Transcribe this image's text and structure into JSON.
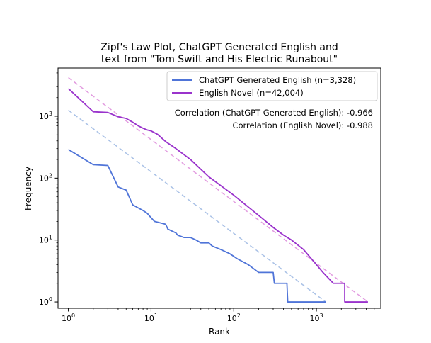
{
  "chart_data": {
    "type": "line",
    "title_lines": [
      "Zipf's Law Plot, ChatGPT Generated English and",
      "text from \"Tom Swift and His Electric Runabout\""
    ],
    "xlabel": "Rank",
    "ylabel": "Frequency",
    "xscale": "log",
    "yscale": "log",
    "xlim": [
      0.75,
      6000
    ],
    "ylim": [
      0.79,
      6000
    ],
    "xticks": [
      {
        "value": 1,
        "base": "10",
        "exp": "0"
      },
      {
        "value": 10,
        "base": "10",
        "exp": "1"
      },
      {
        "value": 100,
        "base": "10",
        "exp": "2"
      },
      {
        "value": 1000,
        "base": "10",
        "exp": "3"
      }
    ],
    "yticks": [
      {
        "value": 1,
        "base": "10",
        "exp": "0"
      },
      {
        "value": 10,
        "base": "10",
        "exp": "1"
      },
      {
        "value": 100,
        "base": "10",
        "exp": "2"
      },
      {
        "value": 1000,
        "base": "10",
        "exp": "3"
      }
    ],
    "grid": false,
    "legend_position": "top-right",
    "series": [
      {
        "name": "ChatGPT Generated English (n=3,328)",
        "color": "#4f74d8",
        "points": [
          [
            1,
            290
          ],
          [
            2,
            165
          ],
          [
            3,
            160
          ],
          [
            4,
            72
          ],
          [
            5,
            64
          ],
          [
            6,
            37
          ],
          [
            7,
            33
          ],
          [
            8,
            30
          ],
          [
            9,
            27
          ],
          [
            10,
            23
          ],
          [
            11,
            20
          ],
          [
            15,
            18
          ],
          [
            16,
            15
          ],
          [
            20,
            13
          ],
          [
            21,
            12
          ],
          [
            25,
            11
          ],
          [
            30,
            11
          ],
          [
            35,
            10
          ],
          [
            40,
            9
          ],
          [
            50,
            9
          ],
          [
            55,
            8
          ],
          [
            70,
            7
          ],
          [
            90,
            6
          ],
          [
            110,
            5
          ],
          [
            150,
            4
          ],
          [
            200,
            3
          ],
          [
            300,
            3
          ],
          [
            310,
            2
          ],
          [
            440,
            2
          ],
          [
            450,
            1
          ],
          [
            1300,
            1
          ]
        ]
      },
      {
        "name": "English Novel (n=42,004)",
        "color": "#9a33cc",
        "points": [
          [
            1,
            2800
          ],
          [
            2,
            1180
          ],
          [
            3,
            1150
          ],
          [
            4,
            980
          ],
          [
            5,
            920
          ],
          [
            6,
            800
          ],
          [
            7,
            700
          ],
          [
            8,
            640
          ],
          [
            9,
            600
          ],
          [
            10,
            580
          ],
          [
            12,
            510
          ],
          [
            15,
            390
          ],
          [
            20,
            300
          ],
          [
            30,
            200
          ],
          [
            50,
            105
          ],
          [
            100,
            53
          ],
          [
            200,
            25
          ],
          [
            300,
            16
          ],
          [
            400,
            12
          ],
          [
            500,
            10
          ],
          [
            700,
            7
          ],
          [
            1000,
            4
          ],
          [
            1200,
            3
          ],
          [
            1600,
            2
          ],
          [
            2200,
            2
          ],
          [
            2200,
            1
          ],
          [
            4200,
            1
          ]
        ]
      }
    ],
    "reference_lines": [
      {
        "color": "#a9c1e6",
        "from": [
          1,
          1250
        ],
        "to": [
          1300,
          1
        ]
      },
      {
        "color": "#e29be0",
        "from": [
          1,
          4200
        ],
        "to": [
          4200,
          1
        ]
      }
    ],
    "annotations": [
      "Correlation (ChatGPT Generated English): -0.966",
      "Correlation (English Novel): -0.988"
    ]
  }
}
